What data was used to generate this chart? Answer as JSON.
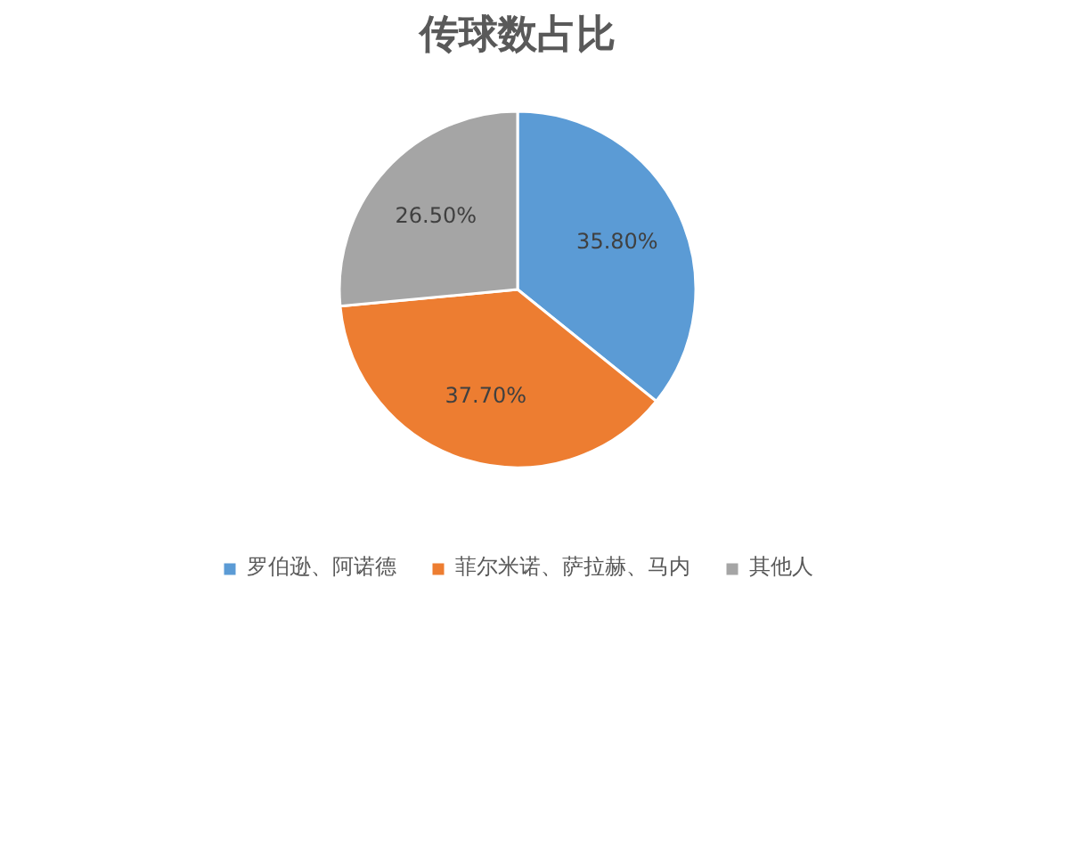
{
  "chart_data": {
    "type": "pie",
    "title": "传球数占比",
    "categories": [
      "罗伯逊、阿诺德",
      "菲尔米诺、萨拉赫、马内",
      "其他人"
    ],
    "values": [
      35.8,
      37.7,
      26.5
    ],
    "colors": [
      "#5b9bd5",
      "#ed7d31",
      "#a5a5a5"
    ],
    "value_labels": [
      "35.80%",
      "37.70%",
      "26.50%"
    ],
    "legend": "bottom"
  }
}
